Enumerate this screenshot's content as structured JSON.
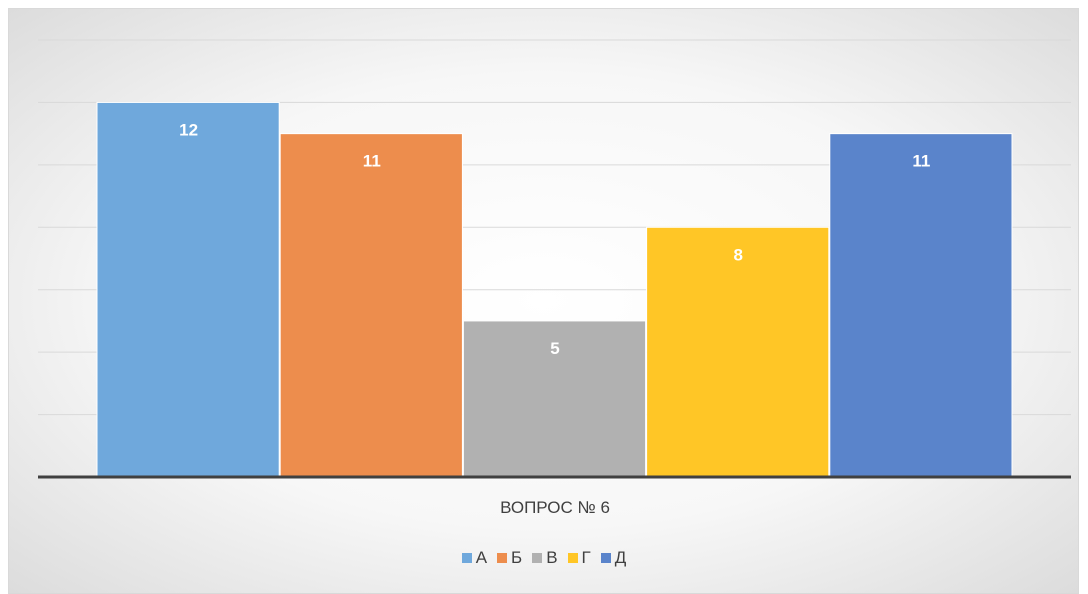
{
  "chart_data": {
    "type": "bar",
    "categories": [
      "ВОПРОС № 6"
    ],
    "series": [
      {
        "name": "А",
        "values": [
          12
        ],
        "color": "#6fa8dc"
      },
      {
        "name": "Б",
        "values": [
          11
        ],
        "color": "#ed8d4d"
      },
      {
        "name": "В",
        "values": [
          5
        ],
        "color": "#b1b1b1"
      },
      {
        "name": "Г",
        "values": [
          8
        ],
        "color": "#ffc626"
      },
      {
        "name": "Д",
        "values": [
          11
        ],
        "color": "#5a84cb"
      }
    ],
    "ylim": [
      0,
      14
    ],
    "grid": true,
    "legend": "bottom",
    "data_labels": true,
    "axis_line_color": "#404040",
    "grid_color": "#d9d9d9"
  }
}
